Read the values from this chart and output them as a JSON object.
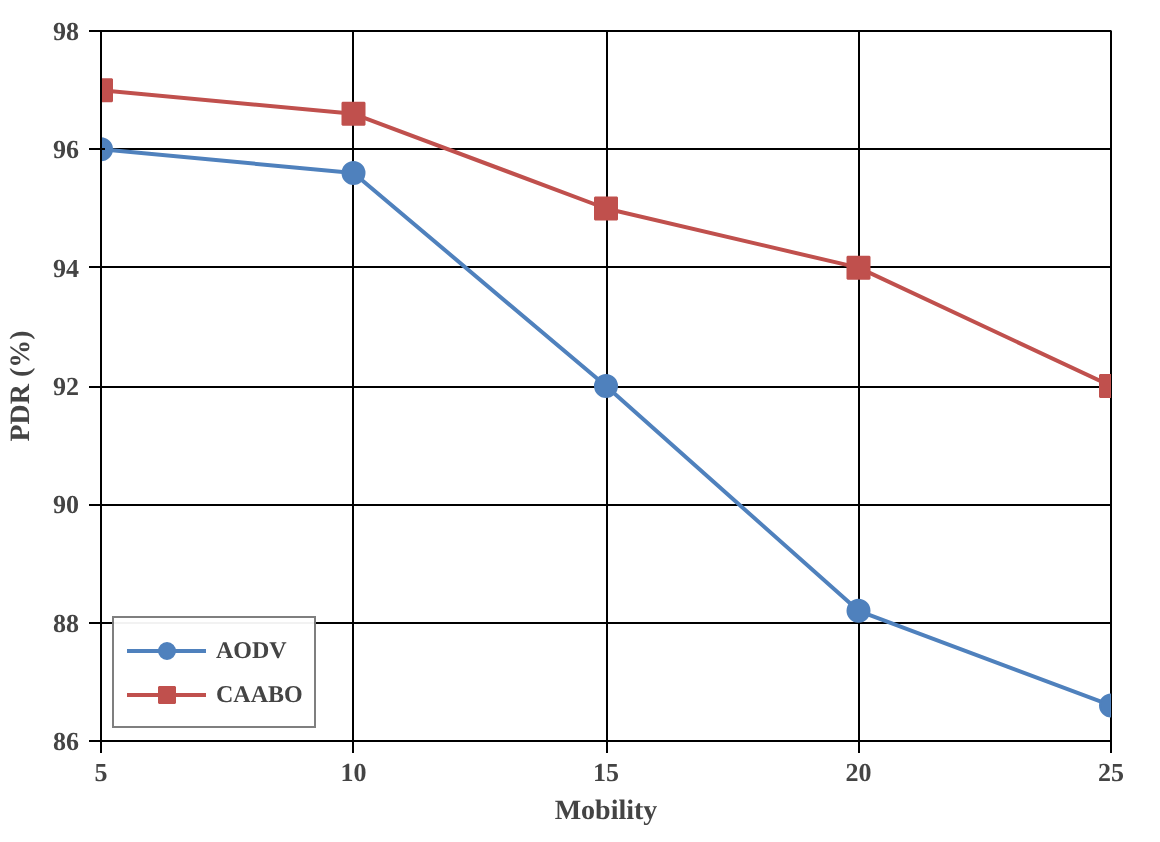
{
  "chart_data": {
    "type": "line",
    "xlabel": "Mobility",
    "ylabel": "PDR (%)",
    "x": [
      5,
      10,
      15,
      20,
      25
    ],
    "series": [
      {
        "name": "AODV",
        "color": "#4f81bd",
        "marker": "circle",
        "values": [
          96,
          95.6,
          92,
          88.2,
          86.6
        ]
      },
      {
        "name": "CAABO",
        "color": "#c0504d",
        "marker": "square",
        "values": [
          97,
          96.6,
          95,
          94,
          92
        ]
      }
    ],
    "xlim": [
      5,
      25
    ],
    "xticks": [
      5,
      10,
      15,
      20,
      25
    ],
    "ylim": [
      86,
      98
    ],
    "yticks": [
      86,
      88,
      90,
      92,
      94,
      96,
      98
    ],
    "grid": true,
    "legend": "bottom left",
    "line_style": "solid"
  }
}
